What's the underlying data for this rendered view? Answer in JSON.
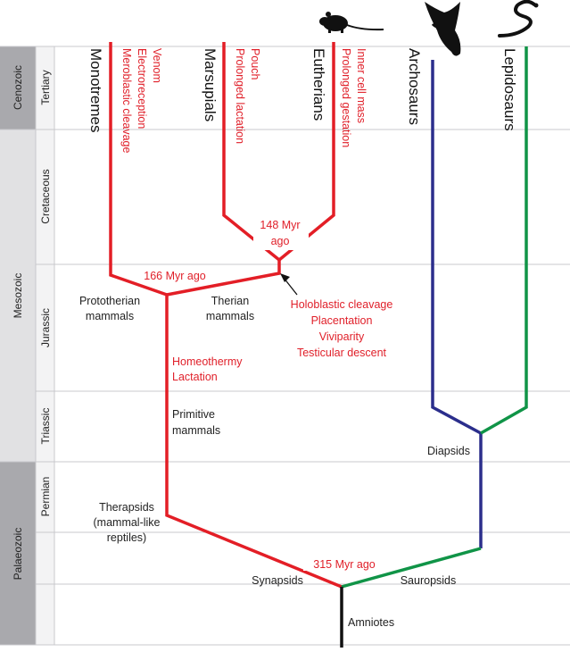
{
  "eras": [
    {
      "name": "Cenozoic",
      "color": "#a9a9ad"
    },
    {
      "name": "Mesozoic",
      "color": "#e1e1e3"
    },
    {
      "name": "Palaeozoic",
      "color": "#a9a9ad"
    }
  ],
  "periods": [
    {
      "name": "Tertiary"
    },
    {
      "name": "Cretaceous"
    },
    {
      "name": "Jurassic"
    },
    {
      "name": "Triassic"
    },
    {
      "name": "Permian"
    }
  ],
  "taxa": {
    "monotremes": "Monotremes",
    "marsupials": "Marsupials",
    "eutherians": "Eutherians",
    "archosaurs": "Archosaurs",
    "lepidosaurs": "Lepidosaurs"
  },
  "traits": {
    "monotremes": [
      "Venom",
      "Electroreception",
      "Meroblastic cleavage"
    ],
    "marsupials": [
      "Pouch",
      "Prolonged lactation"
    ],
    "eutherians": [
      "Inner cell mass",
      "Prolonged gestation"
    ],
    "therian": [
      "Holoblastic cleavage",
      "Placentation",
      "Viviparity",
      "Testicular descent"
    ],
    "mammal": [
      "Homeothermy",
      "Lactation"
    ]
  },
  "dates": {
    "marsupial_eutherian": [
      "148 Myr",
      "ago"
    ],
    "monotreme_therian": "166 Myr ago",
    "synapsid_sauropsid": "315 Myr ago"
  },
  "clades": {
    "prototherian": [
      "Prototherian",
      "mammals"
    ],
    "therian": [
      "Therian",
      "mammals"
    ],
    "primitive": [
      "Primitive",
      "mammals"
    ],
    "therapsids": [
      "Therapsids",
      "(mammal-like",
      "reptiles)"
    ],
    "synapsids": "Synapsids",
    "sauropsids": "Sauropsids",
    "diapsids": "Diapsids",
    "amniotes": "Amniotes"
  },
  "colors": {
    "mammal_line": "#e31e26",
    "archosaur_line": "#2b2e8c",
    "sauropsid_line": "#109447",
    "root_line": "#111111",
    "trait_text": "#e0202a"
  },
  "icons": [
    "rodent-silhouette-icon",
    "bird-silhouette-icon",
    "snake-silhouette-icon"
  ]
}
